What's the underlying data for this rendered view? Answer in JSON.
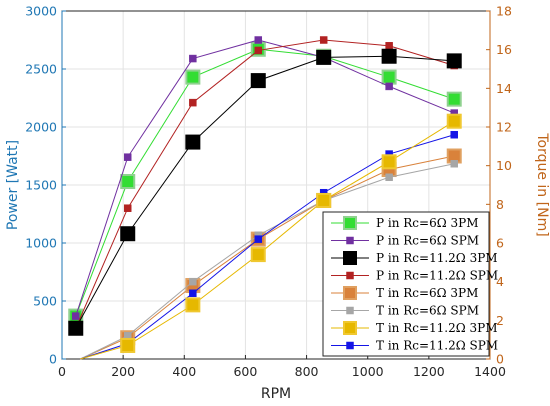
{
  "chart_data": {
    "type": "line",
    "xlabel": "RPM",
    "ylabel_left": "Power [Watt]",
    "ylabel_right": "Torque in [Nm]",
    "xlim": [
      0,
      1400
    ],
    "ylim_left": [
      0,
      3000
    ],
    "ylim_right": [
      0,
      18
    ],
    "x_ticks": [
      0,
      200,
      400,
      600,
      800,
      1000,
      1200,
      1400
    ],
    "y_left_ticks": [
      0,
      500,
      1000,
      1500,
      2000,
      2500,
      3000
    ],
    "y_right_ticks": [
      0,
      2,
      4,
      6,
      8,
      10,
      12,
      14,
      16,
      18
    ],
    "grid": true,
    "legend_position": "lower-right",
    "left_axis_color": "#1f77b4",
    "right_axis_color": "#c0651a",
    "series": [
      {
        "name": "P in Rc=6Ω 3PM",
        "axis": "left",
        "color": "#33dd33",
        "border": "#8fd18f",
        "marker_size": "large",
        "x": [
          45,
          215,
          428,
          642,
          856,
          1070,
          1283
        ],
        "y": [
          370,
          1530,
          2430,
          2670,
          2610,
          2430,
          2240
        ]
      },
      {
        "name": "P in Rc=6Ω SPM",
        "axis": "left",
        "color": "#7030a0",
        "border": "#7030a0",
        "marker_size": "small",
        "x": [
          45,
          215,
          428,
          642,
          856,
          1070,
          1283
        ],
        "y": [
          370,
          1740,
          2590,
          2750,
          2600,
          2350,
          2120
        ]
      },
      {
        "name": "P in Rc=11.2Ω 3PM",
        "axis": "left",
        "color": "#000000",
        "border": "#000000",
        "marker_size": "large",
        "x": [
          45,
          215,
          428,
          642,
          856,
          1070,
          1283
        ],
        "y": [
          265,
          1080,
          1870,
          2400,
          2600,
          2610,
          2570
        ]
      },
      {
        "name": "P in Rc=11.2Ω SPM",
        "axis": "left",
        "color": "#b22222",
        "border": "#b22222",
        "marker_size": "small",
        "x": [
          45,
          215,
          428,
          642,
          856,
          1070,
          1283
        ],
        "y": [
          265,
          1300,
          2210,
          2660,
          2750,
          2700,
          2530
        ]
      },
      {
        "name": "T in Rc=6Ω 3PM",
        "axis": "right",
        "color": "#d9823b",
        "border": "#e0a060",
        "marker_size": "large",
        "x": [
          60,
          215,
          428,
          642,
          856,
          1070,
          1283
        ],
        "y": [
          0,
          1.1,
          3.8,
          6.2,
          8.2,
          9.8,
          10.5
        ]
      },
      {
        "name": "T in Rc=6Ω SPM",
        "axis": "right",
        "color": "#a6a6a6",
        "border": "#a6a6a6",
        "marker_size": "small",
        "x": [
          60,
          215,
          428,
          642,
          856,
          1070,
          1283
        ],
        "y": [
          0,
          1.2,
          4.0,
          6.4,
          8.2,
          9.4,
          10.1
        ]
      },
      {
        "name": "T in Rc=11.2Ω 3PM",
        "axis": "right",
        "color": "#e6b800",
        "border": "#f0c830",
        "marker_size": "large",
        "x": [
          60,
          215,
          428,
          642,
          856,
          1070,
          1283
        ],
        "y": [
          0,
          0.7,
          2.8,
          5.4,
          8.2,
          10.2,
          12.3
        ]
      },
      {
        "name": "T in Rc=11.2Ω SPM",
        "axis": "right",
        "color": "#1414e6",
        "border": "#1414e6",
        "marker_size": "small",
        "x": [
          60,
          215,
          428,
          642,
          856,
          1070,
          1283
        ],
        "y": [
          0,
          0.8,
          3.4,
          6.2,
          8.6,
          10.6,
          11.6
        ]
      }
    ]
  }
}
